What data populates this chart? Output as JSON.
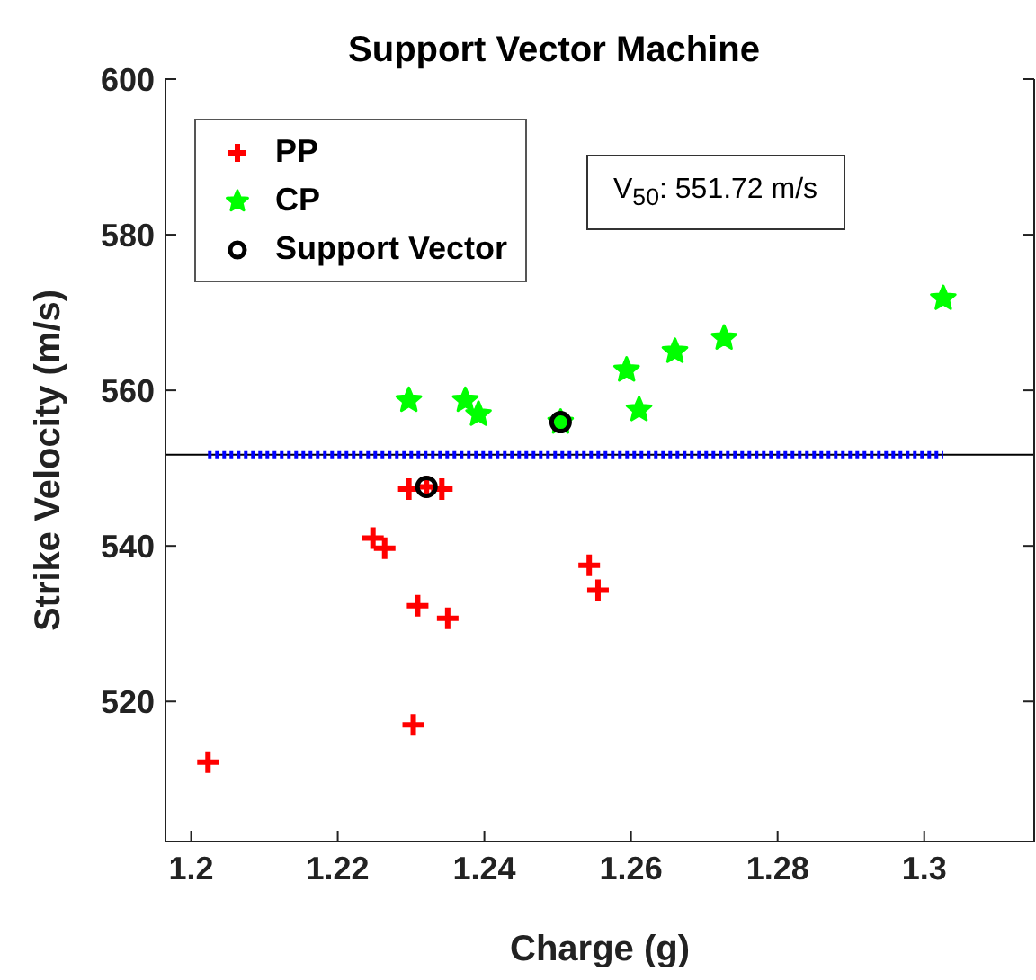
{
  "chart_data": {
    "type": "scatter",
    "title": "Support Vector Machine",
    "xlabel": "Charge (g)",
    "ylabel": "Strike Velocity (m/s)",
    "xlim": [
      1.1965,
      1.315
    ],
    "ylim": [
      502,
      600
    ],
    "xticks": [
      1.2,
      1.22,
      1.24,
      1.26,
      1.28,
      1.3
    ],
    "yticks": [
      520,
      540,
      560,
      580,
      600
    ],
    "grid": false,
    "legend": "top left",
    "series": [
      {
        "name": "PP",
        "color": "#ff0000",
        "marker": "cross",
        "x": [
          1.2023,
          1.2297,
          1.2321,
          1.2342,
          1.2248,
          1.2264,
          1.2309,
          1.235,
          1.2303,
          1.2543,
          1.2555
        ],
        "values": [
          512.2,
          547.3,
          547.6,
          547.3,
          541.0,
          539.7,
          532.3,
          530.7,
          517.0,
          537.5,
          534.3
        ]
      },
      {
        "name": "CP",
        "color": "#00ff00",
        "marker": "star",
        "x": [
          1.2297,
          1.2374,
          1.2392,
          1.2504,
          1.2594,
          1.2611,
          1.266,
          1.2727,
          1.3026
        ],
        "values": [
          558.7,
          558.7,
          556.9,
          555.9,
          562.6,
          557.5,
          565.0,
          566.7,
          571.8
        ]
      },
      {
        "name": "Support Vector",
        "color": "#000000",
        "marker": "circle",
        "x": [
          1.2321,
          1.2504
        ],
        "values": [
          547.6,
          555.9
        ]
      },
      {
        "type": "line",
        "color": "#0000ff",
        "line_style": "dotted",
        "marker": "none",
        "x": [
          1.2023,
          1.3026
        ],
        "values": [
          551.72,
          551.72
        ]
      }
    ],
    "ref_lines": [
      {
        "axis": "y",
        "value": 551.72,
        "color": "#000000"
      }
    ],
    "annotations": [
      "V$_{50}$: 551.72 m/s"
    ]
  }
}
